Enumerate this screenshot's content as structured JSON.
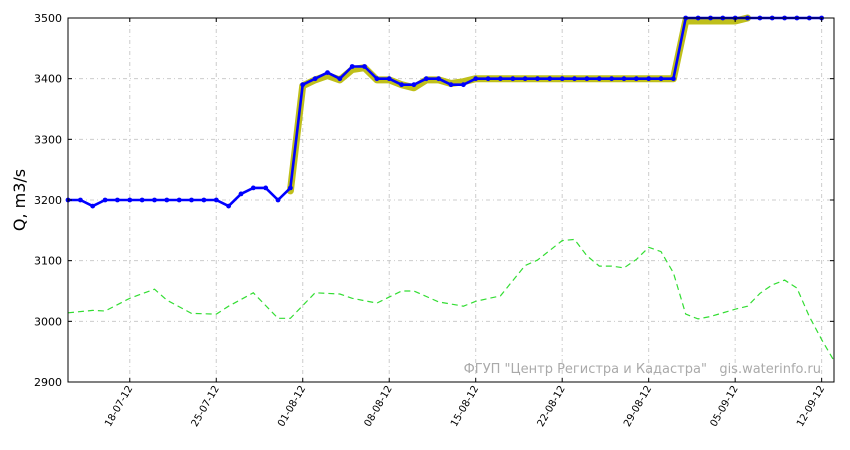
{
  "chart_data": {
    "type": "line",
    "title": "",
    "xlabel": "",
    "ylabel": "Q, m3/s",
    "ylim": [
      2900,
      3500
    ],
    "yticks": [
      2900,
      3000,
      3100,
      3200,
      3300,
      3400,
      3500
    ],
    "xlim": [
      "2012-07-13",
      "2012-09-13"
    ],
    "xticks": [
      {
        "date": "2012-07-18",
        "label": "18-07-12"
      },
      {
        "date": "2012-07-25",
        "label": "25-07-12"
      },
      {
        "date": "2012-08-01",
        "label": "01-08-12"
      },
      {
        "date": "2012-08-08",
        "label": "08-08-12"
      },
      {
        "date": "2012-08-15",
        "label": "15-08-12"
      },
      {
        "date": "2012-08-22",
        "label": "22-08-12"
      },
      {
        "date": "2012-08-29",
        "label": "29-08-12"
      },
      {
        "date": "2012-09-05",
        "label": "05-09-12"
      },
      {
        "date": "2012-09-12",
        "label": "12-09-12"
      }
    ],
    "grid": true,
    "watermark": "ФГУП \"Центр Регистра и Кадастра\"   gis.waterinfo.ru",
    "series": [
      {
        "key": "band",
        "color": "#bfbf1a",
        "style": "band",
        "x": [
          "2012-07-31",
          "2012-08-01",
          "2012-08-02",
          "2012-08-03",
          "2012-08-04",
          "2012-08-05",
          "2012-08-06",
          "2012-08-07",
          "2012-08-08",
          "2012-08-09",
          "2012-08-10",
          "2012-08-11",
          "2012-08-12",
          "2012-08-13",
          "2012-08-14",
          "2012-08-15",
          "2012-08-16",
          "2012-08-17",
          "2012-08-18",
          "2012-08-19",
          "2012-08-20",
          "2012-08-21",
          "2012-08-22",
          "2012-08-23",
          "2012-08-24",
          "2012-08-25",
          "2012-08-26",
          "2012-08-27",
          "2012-08-28",
          "2012-08-29",
          "2012-08-30",
          "2012-08-31",
          "2012-09-01",
          "2012-09-02",
          "2012-09-03",
          "2012-09-04",
          "2012-09-05",
          "2012-09-06"
        ],
        "y": [
          3215,
          3388,
          3398,
          3405,
          3398,
          3415,
          3418,
          3398,
          3398,
          3390,
          3385,
          3398,
          3398,
          3392,
          3395,
          3400,
          3400,
          3400,
          3400,
          3400,
          3400,
          3400,
          3400,
          3400,
          3400,
          3400,
          3400,
          3400,
          3400,
          3400,
          3400,
          3400,
          3495,
          3495,
          3495,
          3495,
          3495,
          3500
        ]
      },
      {
        "key": "observed",
        "color": "#0000ff",
        "style": "solid-markers",
        "x": [
          "2012-07-13",
          "2012-07-14",
          "2012-07-15",
          "2012-07-16",
          "2012-07-17",
          "2012-07-18",
          "2012-07-19",
          "2012-07-20",
          "2012-07-21",
          "2012-07-22",
          "2012-07-23",
          "2012-07-24",
          "2012-07-25",
          "2012-07-26",
          "2012-07-27",
          "2012-07-28",
          "2012-07-29",
          "2012-07-30",
          "2012-07-31",
          "2012-08-01",
          "2012-08-02",
          "2012-08-03",
          "2012-08-04",
          "2012-08-05",
          "2012-08-06",
          "2012-08-07",
          "2012-08-08",
          "2012-08-09",
          "2012-08-10",
          "2012-08-11",
          "2012-08-12",
          "2012-08-13",
          "2012-08-14",
          "2012-08-15",
          "2012-08-16",
          "2012-08-17",
          "2012-08-18",
          "2012-08-19",
          "2012-08-20",
          "2012-08-21",
          "2012-08-22",
          "2012-08-23",
          "2012-08-24",
          "2012-08-25",
          "2012-08-26",
          "2012-08-27",
          "2012-08-28",
          "2012-08-29",
          "2012-08-30",
          "2012-08-31",
          "2012-09-01",
          "2012-09-02",
          "2012-09-03",
          "2012-09-04",
          "2012-09-05",
          "2012-09-06",
          "2012-09-07",
          "2012-09-08",
          "2012-09-09",
          "2012-09-10",
          "2012-09-11",
          "2012-09-12"
        ],
        "y": [
          3200,
          3200,
          3190,
          3200,
          3200,
          3200,
          3200,
          3200,
          3200,
          3200,
          3200,
          3200,
          3200,
          3190,
          3210,
          3220,
          3220,
          3200,
          3220,
          3390,
          3400,
          3410,
          3400,
          3420,
          3420,
          3400,
          3400,
          3390,
          3390,
          3400,
          3400,
          3390,
          3390,
          3400,
          3400,
          3400,
          3400,
          3400,
          3400,
          3400,
          3400,
          3400,
          3400,
          3400,
          3400,
          3400,
          3400,
          3400,
          3400,
          3400,
          3500,
          3500,
          3500,
          3500,
          3500,
          3500,
          3500,
          3500,
          3500,
          3500,
          3500,
          3500
        ]
      },
      {
        "key": "norm",
        "color": "#33dd33",
        "style": "dashed",
        "x": [
          "2012-07-13",
          "2012-07-15",
          "2012-07-16",
          "2012-07-18",
          "2012-07-20",
          "2012-07-21",
          "2012-07-23",
          "2012-07-25",
          "2012-07-26",
          "2012-07-28",
          "2012-07-30",
          "2012-07-31",
          "2012-08-02",
          "2012-08-04",
          "2012-08-05",
          "2012-08-07",
          "2012-08-09",
          "2012-08-10",
          "2012-08-12",
          "2012-08-14",
          "2012-08-15",
          "2012-08-17",
          "2012-08-19",
          "2012-08-20",
          "2012-08-22",
          "2012-08-23",
          "2012-08-24",
          "2012-08-25",
          "2012-08-26",
          "2012-08-27",
          "2012-08-28",
          "2012-08-29",
          "2012-08-30",
          "2012-08-31",
          "2012-09-01",
          "2012-09-02",
          "2012-09-03",
          "2012-09-05",
          "2012-09-06",
          "2012-09-07",
          "2012-09-08",
          "2012-09-09",
          "2012-09-10",
          "2012-09-11",
          "2012-09-12",
          "2012-09-13"
        ],
        "y": [
          3014,
          3018,
          3017,
          3038,
          3053,
          3035,
          3013,
          3012,
          3025,
          3047,
          3005,
          3005,
          3047,
          3045,
          3038,
          3030,
          3050,
          3050,
          3032,
          3025,
          3033,
          3042,
          3092,
          3101,
          3133,
          3135,
          3108,
          3091,
          3091,
          3088,
          3102,
          3122,
          3115,
          3080,
          3012,
          3004,
          3008,
          3020,
          3025,
          3046,
          3060,
          3068,
          3055,
          3008,
          2970,
          2935
        ]
      }
    ]
  }
}
